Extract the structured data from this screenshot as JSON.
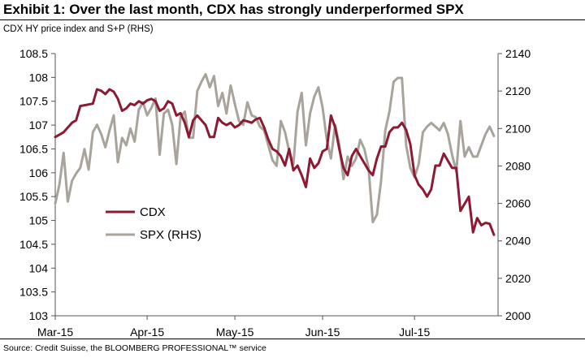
{
  "title": "Exhibit 1: Over the last month, CDX has strongly underperformed SPX",
  "subtitle": "CDX HY price index and S+P (RHS)",
  "source": "Source: Credit Suisse, the BLOOMBERG PROFESSIONAL™ service",
  "colors": {
    "cdx": "#8b1a32",
    "spx": "#a8a39b",
    "axis": "#555555"
  },
  "chart_data": {
    "type": "line",
    "x_tick_labels": [
      "Mar-15",
      "Apr-15",
      "May-15",
      "Jun-15",
      "Jul-15"
    ],
    "x_tick_index": [
      0,
      22,
      43,
      64,
      86
    ],
    "x_max_index": 106,
    "y_left": {
      "ylim": [
        103,
        108.5
      ],
      "ticks": [
        "103",
        "103.5",
        "104",
        "104.5",
        "105",
        "105.5",
        "106",
        "106.5",
        "107",
        "107.5",
        "108",
        "108.5"
      ]
    },
    "y_right": {
      "ylim": [
        2000,
        2140
      ],
      "ticks": [
        "2000",
        "2020",
        "2040",
        "2060",
        "2080",
        "2100",
        "2120",
        "2140"
      ]
    },
    "legend": {
      "cdx_label": "CDX",
      "spx_label": "SPX (RHS)",
      "position": "center-left"
    },
    "series": [
      {
        "name": "CDX",
        "axis": "left",
        "points": [
          [
            0,
            106.75
          ],
          [
            2,
            106.85
          ],
          [
            4,
            107.05
          ],
          [
            5,
            107.1
          ],
          [
            6,
            107.4
          ],
          [
            9,
            107.45
          ],
          [
            10,
            107.75
          ],
          [
            11,
            107.72
          ],
          [
            12,
            107.65
          ],
          [
            13,
            107.75
          ],
          [
            14,
            107.7
          ],
          [
            15,
            107.55
          ],
          [
            16,
            107.3
          ],
          [
            17,
            107.35
          ],
          [
            18,
            107.45
          ],
          [
            19,
            107.42
          ],
          [
            20,
            107.5
          ],
          [
            21,
            107.45
          ],
          [
            22,
            107.52
          ],
          [
            23,
            107.55
          ],
          [
            24,
            107.5
          ],
          [
            25,
            107.3
          ],
          [
            26,
            107.35
          ],
          [
            27,
            107.5
          ],
          [
            28,
            107.45
          ],
          [
            29,
            107.2
          ],
          [
            30,
            107.25
          ],
          [
            31,
            107.05
          ],
          [
            32,
            106.75
          ],
          [
            33,
            107.1
          ],
          [
            34,
            107.2
          ],
          [
            35,
            107.1
          ],
          [
            36,
            107.0
          ],
          [
            37,
            106.75
          ],
          [
            38,
            106.75
          ],
          [
            39,
            107.15
          ],
          [
            40,
            107.05
          ],
          [
            41,
            107.0
          ],
          [
            42,
            107.05
          ],
          [
            43,
            106.95
          ],
          [
            44,
            107.0
          ],
          [
            45,
            107.1
          ],
          [
            46,
            107.08
          ],
          [
            47,
            107.05
          ],
          [
            48,
            107.12
          ],
          [
            49,
            107.15
          ],
          [
            50,
            106.95
          ],
          [
            51,
            106.7
          ],
          [
            52,
            106.5
          ],
          [
            53,
            106.45
          ],
          [
            54,
            106.35
          ],
          [
            55,
            106.15
          ],
          [
            56,
            106.5
          ],
          [
            57,
            106.05
          ],
          [
            58,
            106.15
          ],
          [
            59,
            105.95
          ],
          [
            60,
            105.7
          ],
          [
            61,
            106.3
          ],
          [
            62,
            106.1
          ],
          [
            63,
            106.2
          ],
          [
            64,
            106.45
          ],
          [
            65,
            106.5
          ],
          [
            66,
            107.2
          ],
          [
            67,
            106.95
          ],
          [
            68,
            106.5
          ],
          [
            69,
            106.1
          ],
          [
            70,
            105.95
          ],
          [
            71,
            106.35
          ],
          [
            72,
            106.5
          ],
          [
            73,
            106.35
          ],
          [
            74,
            106.2
          ],
          [
            75,
            106.05
          ],
          [
            76,
            105.95
          ],
          [
            77,
            106.3
          ],
          [
            78,
            106.55
          ],
          [
            79,
            106.55
          ],
          [
            80,
            106.85
          ],
          [
            81,
            106.95
          ],
          [
            82,
            106.95
          ],
          [
            83,
            107.05
          ],
          [
            84,
            106.9
          ],
          [
            85,
            106.6
          ],
          [
            86,
            105.95
          ],
          [
            87,
            105.75
          ],
          [
            88,
            105.65
          ],
          [
            89,
            105.5
          ],
          [
            90,
            105.65
          ],
          [
            91,
            106.15
          ],
          [
            92,
            106.15
          ],
          [
            93,
            106.4
          ],
          [
            94,
            106.25
          ],
          [
            95,
            106.1
          ],
          [
            96,
            106.1
          ],
          [
            97,
            105.2
          ],
          [
            98,
            105.35
          ],
          [
            99,
            105.5
          ],
          [
            100,
            104.75
          ],
          [
            101,
            105.05
          ],
          [
            102,
            104.9
          ],
          [
            103,
            104.95
          ],
          [
            104,
            104.93
          ],
          [
            105,
            104.7
          ]
        ]
      },
      {
        "name": "SPX (RHS)",
        "axis": "right",
        "points": [
          [
            0,
            2060
          ],
          [
            1,
            2070
          ],
          [
            2,
            2087
          ],
          [
            3,
            2061
          ],
          [
            4,
            2072
          ],
          [
            5,
            2076
          ],
          [
            6,
            2079
          ],
          [
            7,
            2089
          ],
          [
            8,
            2078
          ],
          [
            9,
            2098
          ],
          [
            10,
            2102
          ],
          [
            11,
            2097
          ],
          [
            12,
            2090
          ],
          [
            13,
            2099
          ],
          [
            14,
            2107
          ],
          [
            15,
            2082
          ],
          [
            16,
            2095
          ],
          [
            17,
            2091
          ],
          [
            18,
            2100
          ],
          [
            19,
            2093
          ],
          [
            20,
            2110
          ],
          [
            21,
            2114
          ],
          [
            22,
            2107
          ],
          [
            23,
            2111
          ],
          [
            24,
            2116
          ],
          [
            25,
            2086
          ],
          [
            26,
            2108
          ],
          [
            27,
            2110
          ],
          [
            28,
            2102
          ],
          [
            29,
            2081
          ],
          [
            30,
            2106
          ],
          [
            31,
            2109
          ],
          [
            32,
            2095
          ],
          [
            33,
            2095
          ],
          [
            34,
            2120
          ],
          [
            35,
            2125
          ],
          [
            36,
            2129
          ],
          [
            37,
            2122
          ],
          [
            38,
            2128
          ],
          [
            39,
            2112
          ],
          [
            40,
            2119
          ],
          [
            41,
            2108
          ],
          [
            42,
            2123
          ],
          [
            43,
            2113
          ],
          [
            44,
            2104
          ],
          [
            45,
            2102
          ],
          [
            46,
            2114
          ],
          [
            47,
            2107
          ],
          [
            48,
            2106
          ],
          [
            49,
            2101
          ],
          [
            50,
            2099
          ],
          [
            51,
            2091
          ],
          [
            52,
            2083
          ],
          [
            53,
            2080
          ],
          [
            54,
            2104
          ],
          [
            55,
            2098
          ],
          [
            56,
            2088
          ],
          [
            57,
            2081
          ],
          [
            58,
            2109
          ],
          [
            59,
            2119
          ],
          [
            60,
            2091
          ],
          [
            61,
            2108
          ],
          [
            62,
            2117
          ],
          [
            63,
            2122
          ],
          [
            64,
            2111
          ],
          [
            65,
            2094
          ],
          [
            66,
            2084
          ],
          [
            67,
            2102
          ],
          [
            68,
            2091
          ],
          [
            69,
            2073
          ],
          [
            70,
            2085
          ],
          [
            71,
            2080
          ],
          [
            72,
            2084
          ],
          [
            73,
            2094
          ],
          [
            74,
            2089
          ],
          [
            75,
            2079
          ],
          [
            76,
            2050
          ],
          [
            77,
            2054
          ],
          [
            78,
            2072
          ],
          [
            79,
            2099
          ],
          [
            80,
            2109
          ],
          [
            81,
            2125
          ],
          [
            82,
            2127
          ],
          [
            83,
            2127
          ],
          [
            84,
            2091
          ],
          [
            85,
            2079
          ],
          [
            86,
            2074
          ],
          [
            87,
            2081
          ],
          [
            88,
            2098
          ],
          [
            89,
            2101
          ],
          [
            90,
            2103
          ],
          [
            91,
            2101
          ],
          [
            92,
            2099
          ],
          [
            93,
            2103
          ],
          [
            94,
            2097
          ],
          [
            95,
            2086
          ],
          [
            96,
            2077
          ],
          [
            97,
            2104
          ],
          [
            98,
            2085
          ],
          [
            99,
            2090
          ],
          [
            100,
            2085
          ],
          [
            101,
            2085
          ],
          [
            102,
            2091
          ],
          [
            103,
            2097
          ],
          [
            104,
            2101
          ],
          [
            105,
            2096
          ]
        ]
      }
    ]
  }
}
